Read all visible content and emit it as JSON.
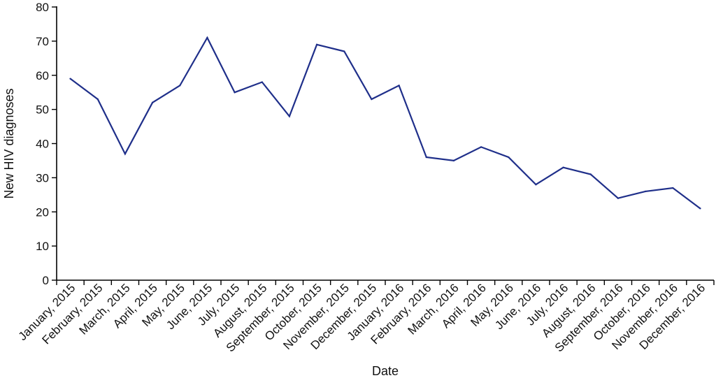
{
  "chart_data": {
    "type": "line",
    "title": "",
    "xlabel": "Date",
    "ylabel": "New HIV diagnoses",
    "ylim": [
      0,
      80
    ],
    "yticks": [
      0,
      10,
      20,
      30,
      40,
      50,
      60,
      70,
      80
    ],
    "grid": false,
    "line_color": "#1f2f8a",
    "categories": [
      "January, 2015",
      "February, 2015",
      "March, 2015",
      "April, 2015",
      "May, 2015",
      "June, 2015",
      "July, 2015",
      "August, 2015",
      "September, 2015",
      "October, 2015",
      "November, 2015",
      "December, 2015",
      "January, 2016",
      "February, 2016",
      "March, 2016",
      "April, 2016",
      "May, 2016",
      "June, 2016",
      "July, 2016",
      "August, 2016",
      "September, 2016",
      "October, 2016",
      "November, 2016",
      "December, 2016"
    ],
    "series": [
      {
        "name": "New HIV diagnoses",
        "values": [
          59,
          53,
          37,
          52,
          57,
          71,
          55,
          58,
          48,
          69,
          67,
          53,
          57,
          36,
          35,
          39,
          36,
          28,
          33,
          31,
          24,
          26,
          27,
          21
        ]
      }
    ]
  }
}
